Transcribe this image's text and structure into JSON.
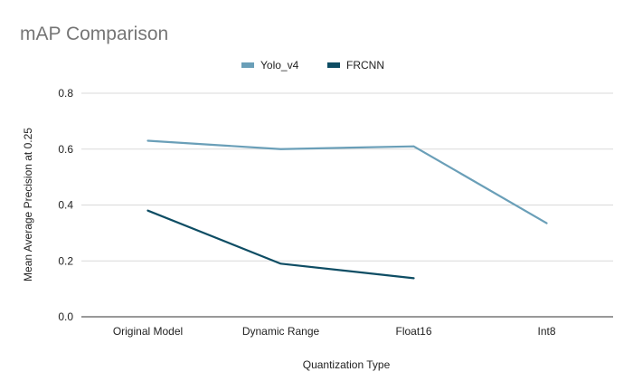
{
  "chart_data": {
    "type": "line",
    "title": "mAP Comparison",
    "xlabel": "Quantization Type",
    "ylabel": "Mean Average Precision at 0.25",
    "categories": [
      "Original Model",
      "Dynamic Range",
      "Float16",
      "Int8"
    ],
    "ylim": [
      0,
      0.8
    ],
    "yticks": [
      "0.0",
      "0.2",
      "0.4",
      "0.6",
      "0.8"
    ],
    "grid": true,
    "legend_position": "top",
    "series": [
      {
        "name": "Yolo_v4",
        "color": "#6a9fb8",
        "values": [
          0.63,
          0.6,
          0.61,
          0.335
        ]
      },
      {
        "name": "FRCNN",
        "color": "#0e4d64",
        "values": [
          0.38,
          0.19,
          0.138,
          null
        ]
      }
    ]
  }
}
